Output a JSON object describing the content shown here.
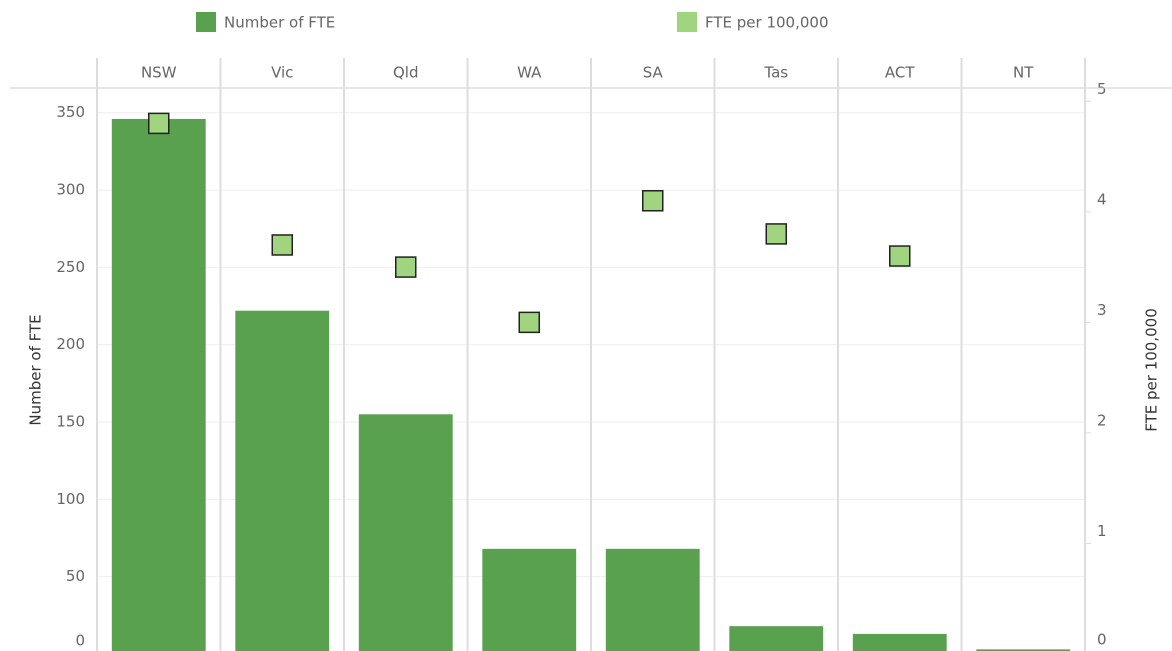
{
  "chart_data": {
    "type": "bar",
    "categories": [
      "NSW",
      "Vic",
      "Qld",
      "WA",
      "SA",
      "Tas",
      "ACT",
      "NT"
    ],
    "series": [
      {
        "name": "Number of FTE",
        "type": "bar",
        "color": "#59a14f",
        "values": [
          346,
          222,
          155,
          68,
          68,
          18,
          13,
          3
        ]
      },
      {
        "name": "FTE per 100,000",
        "type": "scatter",
        "axis": "y2",
        "color": "#a0d47e",
        "values": [
          4.8,
          3.7,
          3.5,
          3.0,
          4.1,
          3.8,
          3.6,
          null
        ]
      }
    ],
    "y_label": "Number of FTE",
    "y2_label": "FTE per 100,000",
    "ylim": [
      0,
      366
    ],
    "yticks": [
      0,
      50,
      100,
      150,
      200,
      250,
      300,
      350
    ],
    "y2lim": [
      0,
      5.12
    ],
    "y2ticks": [
      0,
      1,
      2,
      3,
      4,
      5
    ],
    "grid": true
  }
}
